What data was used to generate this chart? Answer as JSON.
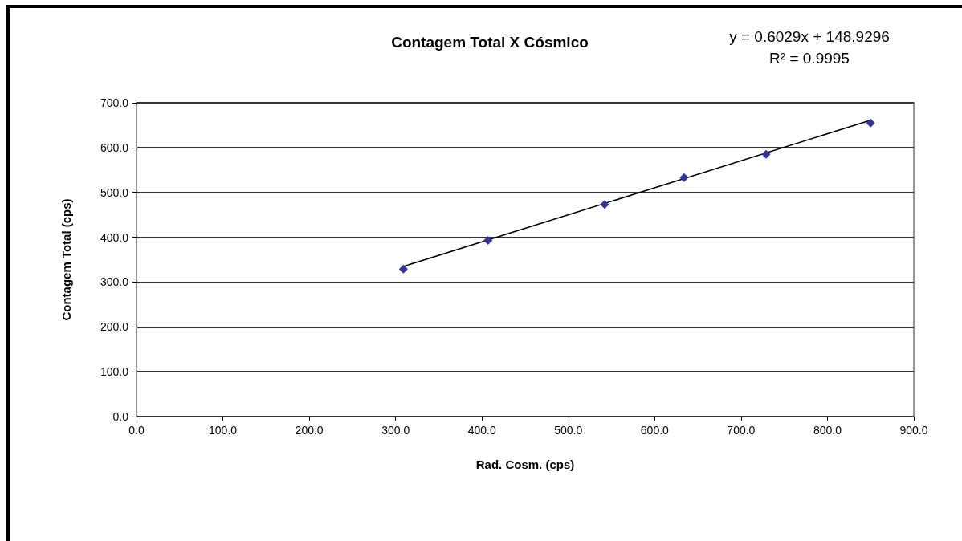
{
  "chart_data": {
    "type": "scatter",
    "title": "Contagem Total X Cósmico",
    "xlabel": "Rad. Cosm. (cps)",
    "ylabel": "Contagem Total (cps)",
    "annotations": [
      "y = 0.6029x + 148.9296",
      "R² = 0.9995"
    ],
    "x": [
      309,
      407,
      542,
      634,
      729,
      850
    ],
    "marker": "diamond",
    "grid": "y",
    "series": [
      {
        "color": "#333399",
        "values": [
          329,
          393,
          473,
          533,
          585,
          655
        ]
      },
      {
        "type": "line",
        "color": "#000000",
        "x": [
          309,
          850
        ],
        "values": [
          335,
          661
        ],
        "marker": "none",
        "line_style": "solid"
      }
    ],
    "xlim": [
      0,
      900
    ],
    "ylim": [
      0,
      700
    ],
    "xticks": [
      {
        "value": 0,
        "label": "0.0"
      },
      {
        "value": 100,
        "label": "100.0"
      },
      {
        "value": 200,
        "label": "200.0"
      },
      {
        "value": 300,
        "label": "300.0"
      },
      {
        "value": 400,
        "label": "400.0"
      },
      {
        "value": 500,
        "label": "500.0"
      },
      {
        "value": 600,
        "label": "600.0"
      },
      {
        "value": 700,
        "label": "700.0"
      },
      {
        "value": 800,
        "label": "800.0"
      },
      {
        "value": 900,
        "label": "900.0"
      }
    ],
    "yticks": [
      {
        "value": 0,
        "label": "0.0"
      },
      {
        "value": 100,
        "label": "100.0"
      },
      {
        "value": 200,
        "label": "200.0"
      },
      {
        "value": 300,
        "label": "300.0"
      },
      {
        "value": 400,
        "label": "400.0"
      },
      {
        "value": 500,
        "label": "500.0"
      },
      {
        "value": 600,
        "label": "600.0"
      },
      {
        "value": 700,
        "label": "700.0"
      }
    ]
  }
}
